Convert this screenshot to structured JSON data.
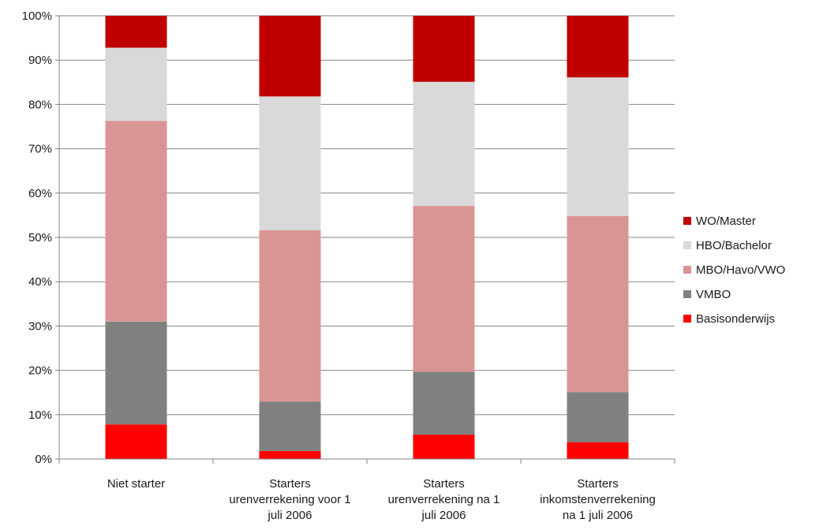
{
  "chart_data": {
    "type": "bar",
    "stacked": true,
    "categories": [
      [
        "Niet starter"
      ],
      [
        "Starters",
        "urenverrekening voor 1",
        "juli 2006"
      ],
      [
        "Starters",
        "urenverrekening na 1",
        "juli 2006"
      ],
      [
        "Starters",
        "inkomstenverrekening",
        "na 1 juli 2006"
      ]
    ],
    "series": [
      {
        "name": "Basisonderwijs",
        "color": "#ff0000",
        "values": [
          7.8,
          1.8,
          5.5,
          3.8
        ]
      },
      {
        "name": "VMBO",
        "color": "#808080",
        "values": [
          23.2,
          11.1,
          14.2,
          11.3
        ]
      },
      {
        "name": "MBO/Havo/VWO",
        "color": "#d99594",
        "values": [
          45.3,
          38.7,
          37.4,
          39.7
        ]
      },
      {
        "name": "HBO/Bachelor",
        "color": "#d9d9d9",
        "values": [
          16.5,
          30.2,
          28.0,
          31.3
        ]
      },
      {
        "name": "WO/Master",
        "color": "#c00000",
        "values": [
          7.2,
          18.2,
          14.9,
          13.9
        ]
      }
    ],
    "legend_order": [
      "WO/Master",
      "HBO/Bachelor",
      "MBO/Havo/VWO",
      "VMBO",
      "Basisonderwijs"
    ],
    "y_ticks": [
      "0%",
      "10%",
      "20%",
      "30%",
      "40%",
      "50%",
      "60%",
      "70%",
      "80%",
      "90%",
      "100%"
    ],
    "ylim": [
      0,
      100
    ],
    "grid": true,
    "legend_position": "right"
  }
}
